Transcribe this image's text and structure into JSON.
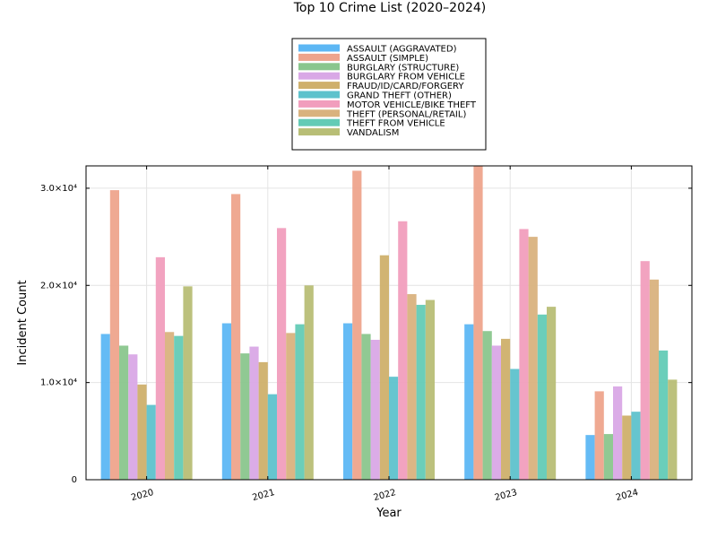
{
  "chart_data": {
    "type": "bar",
    "title": "Top 10 Crime List (2020–2024)",
    "xlabel": "Year",
    "ylabel": "Incident Count",
    "categories": [
      "2020",
      "2021",
      "2022",
      "2023",
      "2024"
    ],
    "ylim": [
      0,
      32300
    ],
    "yticks": [
      {
        "value": 0,
        "label": "0"
      },
      {
        "value": 10000,
        "label": "1.0×10⁴"
      },
      {
        "value": 20000,
        "label": "2.0×10⁴"
      },
      {
        "value": 30000,
        "label": "3.0×10⁴"
      }
    ],
    "grid": true,
    "legend_position": "top-center",
    "series": [
      {
        "name": "ASSAULT (AGGRAVATED)",
        "color": "#5db7f4",
        "values": [
          15000,
          16100,
          16100,
          16000,
          4600
        ]
      },
      {
        "name": "ASSAULT (SIMPLE)",
        "color": "#eea48c",
        "values": [
          29800,
          29400,
          31800,
          32300,
          9100
        ]
      },
      {
        "name": "BURGLARY (STRUCTURE)",
        "color": "#8ac68d",
        "values": [
          13800,
          13000,
          15000,
          15300,
          4700
        ]
      },
      {
        "name": "BURGLARY FROM VEHICLE",
        "color": "#d9a8e6",
        "values": [
          12900,
          13700,
          14400,
          13800,
          9600
        ]
      },
      {
        "name": "FRAUD/ID/CARD/FORGERY",
        "color": "#cfb06c",
        "values": [
          9800,
          12100,
          23100,
          14500,
          6600
        ]
      },
      {
        "name": "GRAND THEFT (OTHER)",
        "color": "#5ec2cc",
        "values": [
          7700,
          8800,
          10600,
          11400,
          7000
        ]
      },
      {
        "name": "MOTOR VEHICLE/BIKE THEFT",
        "color": "#f19ebd",
        "values": [
          22900,
          25900,
          26600,
          25800,
          22500
        ]
      },
      {
        "name": "THEFT (PERSONAL/RETAIL)",
        "color": "#d9b27e",
        "values": [
          15200,
          15100,
          19100,
          25000,
          20600
        ]
      },
      {
        "name": "THEFT FROM VEHICLE",
        "color": "#63cbb6",
        "values": [
          14800,
          16000,
          18000,
          17000,
          13300
        ]
      },
      {
        "name": "VANDALISM",
        "color": "#b8be76",
        "values": [
          19900,
          20000,
          18500,
          17800,
          10300
        ]
      }
    ]
  }
}
